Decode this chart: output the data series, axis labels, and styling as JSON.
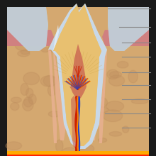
{
  "bg_color": "#1a1a1a",
  "enamel_color": "#c8d8e8",
  "enamel_highlight": "#e8f0f8",
  "dentin_color": "#e8c070",
  "pulp_color": "#c86050",
  "gum_color": "#d08080",
  "bone_color": "#d4a870",
  "bone_spot_color": "#c09060",
  "pdl_color": "#e8b090",
  "nerve_red": "#cc2200",
  "nerve_blue": "#2244cc",
  "nerve_orange": "#ff8800",
  "blood_bottom_red": "#ff2200",
  "blood_bottom_orange": "#ffaa00",
  "adj_tooth_color": "#b0bcc8",
  "adj_tooth_inner": "#d8e4ec",
  "label_line_color": "#888888"
}
